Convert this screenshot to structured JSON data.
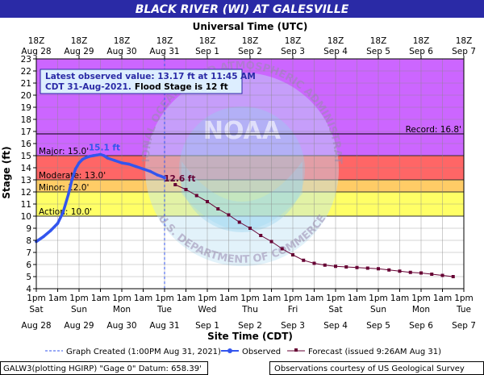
{
  "chart_data": {
    "type": "line",
    "title": "BLACK RIVER (WI) AT GALESVILLE",
    "top_axis_title": "Universal Time (UTC)",
    "xlabel": "Site Time (CDT)",
    "ylabel": "Stage (ft)",
    "ylim": [
      4,
      23
    ],
    "yticks": [
      4,
      5,
      6,
      7,
      8,
      9,
      10,
      11,
      12,
      13,
      14,
      15,
      16,
      17,
      18,
      19,
      20,
      21,
      22,
      23
    ],
    "grid": true,
    "x_range_hours": [
      0,
      240
    ],
    "top_ticks": [
      {
        "x": 0,
        "line1": "18Z",
        "line2": "Aug 28"
      },
      {
        "x": 24,
        "line1": "18Z",
        "line2": "Aug 29"
      },
      {
        "x": 48,
        "line1": "18Z",
        "line2": "Aug 30"
      },
      {
        "x": 72,
        "line1": "18Z",
        "line2": "Aug 31"
      },
      {
        "x": 96,
        "line1": "18Z",
        "line2": "Sep 1"
      },
      {
        "x": 120,
        "line1": "18Z",
        "line2": "Sep 2"
      },
      {
        "x": 144,
        "line1": "18Z",
        "line2": "Sep 3"
      },
      {
        "x": 168,
        "line1": "18Z",
        "line2": "Sep 4"
      },
      {
        "x": 192,
        "line1": "18Z",
        "line2": "Sep 5"
      },
      {
        "x": 216,
        "line1": "18Z",
        "line2": "Sep 6"
      },
      {
        "x": 240,
        "line1": "18Z",
        "line2": "Sep 7"
      }
    ],
    "bottom_ticks": [
      {
        "x": 0,
        "line1": "1pm",
        "line2": "Sat",
        "line3": "Aug 28"
      },
      {
        "x": 12,
        "line1": "1am",
        "line2": "",
        "line3": ""
      },
      {
        "x": 24,
        "line1": "1pm",
        "line2": "Sun",
        "line3": "Aug 29"
      },
      {
        "x": 36,
        "line1": "1am",
        "line2": "",
        "line3": ""
      },
      {
        "x": 48,
        "line1": "1pm",
        "line2": "Mon",
        "line3": "Aug 30"
      },
      {
        "x": 60,
        "line1": "1am",
        "line2": "",
        "line3": ""
      },
      {
        "x": 72,
        "line1": "1pm",
        "line2": "Tue",
        "line3": "Aug 31"
      },
      {
        "x": 84,
        "line1": "1am",
        "line2": "",
        "line3": ""
      },
      {
        "x": 96,
        "line1": "1pm",
        "line2": "Wed",
        "line3": "Sep 1"
      },
      {
        "x": 108,
        "line1": "1am",
        "line2": "",
        "line3": ""
      },
      {
        "x": 120,
        "line1": "1pm",
        "line2": "Thu",
        "line3": "Sep 2"
      },
      {
        "x": 132,
        "line1": "1am",
        "line2": "",
        "line3": ""
      },
      {
        "x": 144,
        "line1": "1pm",
        "line2": "Fri",
        "line3": "Sep 3"
      },
      {
        "x": 156,
        "line1": "1am",
        "line2": "",
        "line3": ""
      },
      {
        "x": 168,
        "line1": "1pm",
        "line2": "Sat",
        "line3": "Sep 4"
      },
      {
        "x": 180,
        "line1": "1am",
        "line2": "",
        "line3": ""
      },
      {
        "x": 192,
        "line1": "1pm",
        "line2": "Sun",
        "line3": "Sep 5"
      },
      {
        "x": 204,
        "line1": "1am",
        "line2": "",
        "line3": ""
      },
      {
        "x": 216,
        "line1": "1pm",
        "line2": "Mon",
        "line3": "Sep 6"
      },
      {
        "x": 228,
        "line1": "1am",
        "line2": "",
        "line3": ""
      },
      {
        "x": 240,
        "line1": "1pm",
        "line2": "Tue",
        "line3": "Sep 7"
      }
    ],
    "bands": [
      {
        "name": "Action",
        "label": "Action: 10.0'",
        "from": 10,
        "to": 12,
        "color": "#ffff66"
      },
      {
        "name": "Minor",
        "label": "Minor: 12.0'",
        "from": 12,
        "to": 13,
        "color": "#ffcc66"
      },
      {
        "name": "Moderate",
        "label": "Moderate: 13.0'",
        "from": 13,
        "to": 15,
        "color": "#ff6666"
      },
      {
        "name": "Major",
        "label": "Major: 15.0'",
        "from": 15,
        "to": 23,
        "color": "#cc66ff"
      }
    ],
    "record": {
      "value": 16.8,
      "label": "Record: 16.8'"
    },
    "graph_created_x": 72,
    "series": [
      {
        "name": "Observed",
        "color": "#3355ee",
        "x": [
          0,
          4,
          8,
          12,
          15,
          18,
          20,
          22,
          24,
          26,
          28,
          30,
          32,
          34,
          36,
          38,
          40,
          44,
          48,
          52,
          56,
          60,
          64,
          68,
          70,
          72
        ],
        "y": [
          7.9,
          8.3,
          8.8,
          9.4,
          10.3,
          11.8,
          13.0,
          13.9,
          14.4,
          14.7,
          14.85,
          14.95,
          15.0,
          15.05,
          15.1,
          15.0,
          14.8,
          14.6,
          14.4,
          14.3,
          14.1,
          13.9,
          13.7,
          13.4,
          13.3,
          13.17
        ]
      },
      {
        "name": "Forecast",
        "color": "#660033",
        "x": [
          78,
          84,
          90,
          96,
          102,
          108,
          114,
          120,
          126,
          132,
          138,
          144,
          150,
          156,
          162,
          168,
          174,
          180,
          186,
          192,
          198,
          204,
          210,
          216,
          222,
          228,
          234
        ],
        "y": [
          12.6,
          12.2,
          11.7,
          11.2,
          10.6,
          10.1,
          9.5,
          9.0,
          8.4,
          7.9,
          7.3,
          6.8,
          6.35,
          6.1,
          5.95,
          5.85,
          5.8,
          5.75,
          5.7,
          5.65,
          5.55,
          5.45,
          5.35,
          5.3,
          5.2,
          5.1,
          5.0
        ]
      }
    ],
    "annotations": [
      {
        "text": "15.1 ft",
        "x": 33,
        "y": 15.1,
        "color": "#3355ee"
      },
      {
        "text": "12.6 ft",
        "x": 78,
        "y": 12.6,
        "color": "#660033"
      }
    ]
  },
  "info_box": {
    "line1": "Latest observed value: 13.17 ft at 11:45 AM",
    "line2_part1": "CDT 31-Aug-2021.",
    "line2_part2": "Flood Stage is 12 ft"
  },
  "watermark": {
    "top_text": "NATIONAL OCEANIC AND ATMOSPHERIC ADMINISTRATION",
    "center_text": "NOAA",
    "bottom_text": "U.S. DEPARTMENT OF COMMERCE"
  },
  "legend": {
    "graph_created": "Graph Created (1:00PM Aug 31, 2021)",
    "observed": "Observed",
    "forecast": "Forecast (issued 9:26AM Aug 31)"
  },
  "footer": {
    "left": "GALW3(plotting HGIRP) \"Gage 0\" Datum: 658.39'",
    "right": "Observations courtesy of US Geological Survey"
  },
  "colors": {
    "title_bar": "#2a2aa6",
    "info_text": "#2a2aa6",
    "grid": "#888888"
  }
}
